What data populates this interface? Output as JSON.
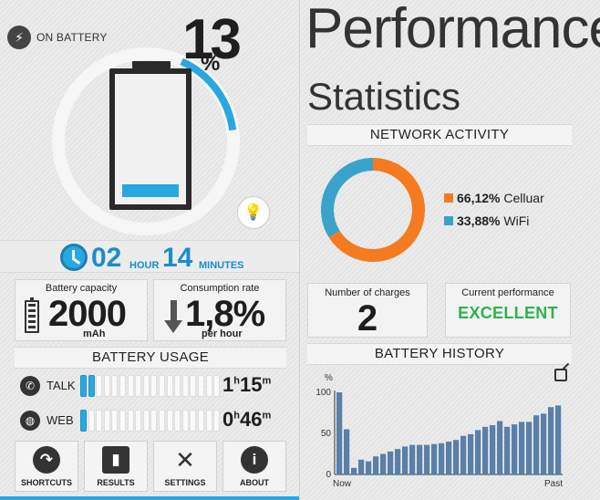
{
  "left": {
    "power_icon": "lightning-icon",
    "power_status": "ON BATTERY",
    "percent_number": "13",
    "percent_sign": "%",
    "charge_level": 0.13,
    "time_icon": "clock-icon",
    "time_hours": "02",
    "time_hours_label": "HOUR",
    "time_minutes": "14",
    "time_minutes_label": "MINUTES",
    "capacity": {
      "title": "Battery capacity",
      "value": "2000",
      "unit": "mAh",
      "icon": "battery-icon"
    },
    "consumption": {
      "title": "Consumption rate",
      "value": "1,8%",
      "unit": "per hour",
      "icon": "down-arrow-icon"
    },
    "usage_header": "BATTERY USAGE",
    "usage": [
      {
        "label": "TALK",
        "icon": "phone-icon",
        "hours": "1",
        "h_unit": "h",
        "minutes": "15",
        "m_unit": "m",
        "level": 0.1
      },
      {
        "label": "WEB",
        "icon": "globe-icon",
        "hours": "0",
        "h_unit": "h",
        "minutes": "46",
        "m_unit": "m",
        "level": 0.05
      }
    ],
    "nav": [
      {
        "label": "SHORTCUTS",
        "icon": "shortcut-arrow-icon",
        "glyph": "↷"
      },
      {
        "label": "RESULTS",
        "icon": "bar-chart-icon",
        "glyph": "▮"
      },
      {
        "label": "SETTINGS",
        "icon": "tools-icon",
        "glyph": "✕"
      },
      {
        "label": "ABOUT",
        "icon": "info-icon",
        "glyph": "i"
      }
    ],
    "accent": "#29a8e0"
  },
  "right": {
    "title": "Performance",
    "subtitle": "Statistics",
    "network_header": "NETWORK ACTIVITY",
    "network": [
      {
        "value": "66,12%",
        "label": "Celluar",
        "color": "#f47b20",
        "fraction": 0.6612
      },
      {
        "value": "33,88%",
        "label": "WiFi",
        "color": "#3aa3c9",
        "fraction": 0.3388
      }
    ],
    "charges": {
      "title": "Number of charges",
      "value": "2"
    },
    "performance": {
      "title": "Current performance",
      "value": "EXCELLENT",
      "color": "#2eb34c"
    },
    "history_header": "BATTERY HISTORY",
    "history_icon": "external-link-icon"
  },
  "chart_data": {
    "type": "bar",
    "ylabel": "%",
    "ylim": [
      0,
      100
    ],
    "yticks": [
      "0",
      "50",
      "100"
    ],
    "x_start_label": "Now",
    "x_end_label": "Past",
    "values": [
      100,
      55,
      8,
      18,
      16,
      22,
      25,
      28,
      31,
      34,
      36,
      36,
      36,
      37,
      38,
      40,
      42,
      47,
      49,
      54,
      58,
      60,
      65,
      58,
      61,
      64,
      64,
      72,
      74,
      82,
      84
    ],
    "bar_color": "#5a7fa8"
  }
}
